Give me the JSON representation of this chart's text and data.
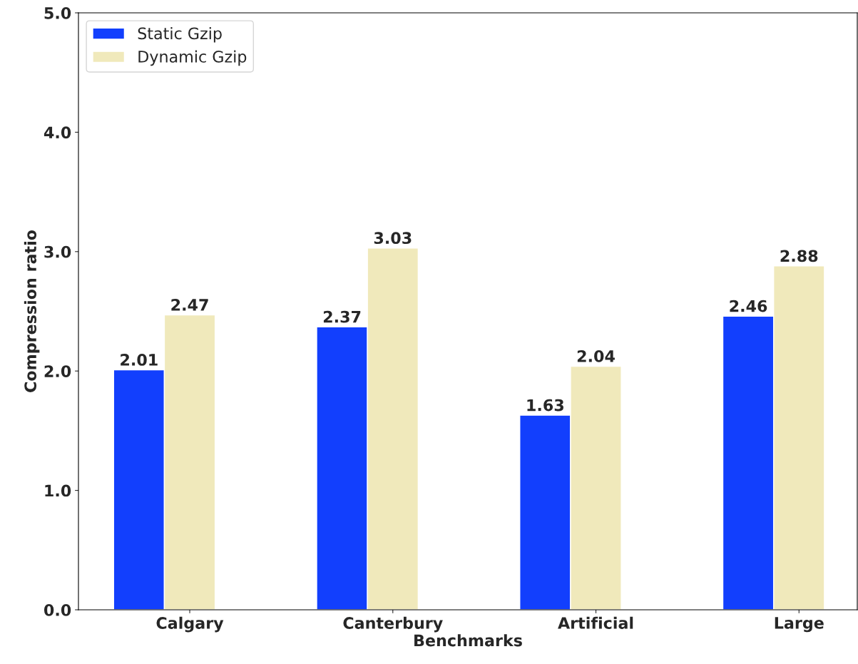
{
  "chart_data": {
    "type": "bar",
    "xlabel": "Benchmarks",
    "ylabel": "Compression ratio",
    "categories": [
      "Calgary",
      "Canterbury",
      "Artificial",
      "Large"
    ],
    "series": [
      {
        "name": "Static Gzip",
        "color": "#123ffd",
        "values": [
          2.01,
          2.37,
          1.63,
          2.46
        ]
      },
      {
        "name": "Dynamic Gzip",
        "color": "#f0e9bb",
        "values": [
          2.47,
          3.03,
          2.04,
          2.88
        ]
      }
    ],
    "ylim": [
      0,
      5
    ],
    "yticks": [
      {
        "value": 0,
        "label": "0.0"
      },
      {
        "value": 1,
        "label": "1.0"
      },
      {
        "value": 2,
        "label": "2.0"
      },
      {
        "value": 3,
        "label": "3.0"
      },
      {
        "value": 4,
        "label": "4.0"
      },
      {
        "value": 5,
        "label": "5.0"
      }
    ],
    "data_labels": true,
    "legend": "top left",
    "grid": false
  }
}
